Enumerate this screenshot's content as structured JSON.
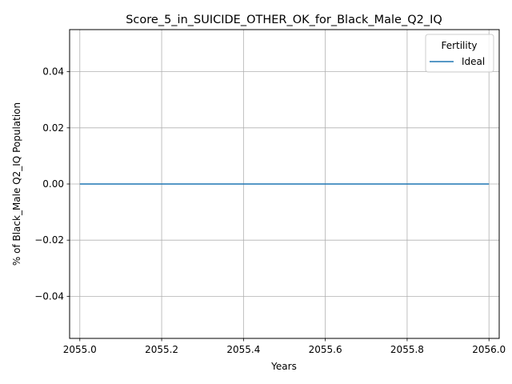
{
  "chart_data": {
    "type": "line",
    "title": "Score_5_in_SUICIDE_OTHER_OK_for_Black_Male_Q2_IQ",
    "xlabel": "Years",
    "ylabel": "% of Black_Male Q2_IQ Population",
    "xlim": [
      2054.975,
      2056.025
    ],
    "ylim": [
      -0.055,
      0.055
    ],
    "x_ticks": [
      2055.0,
      2055.2,
      2055.4,
      2055.6,
      2055.8,
      2056.0
    ],
    "x_tick_labels": [
      "2055.0",
      "2055.2",
      "2055.4",
      "2055.6",
      "2055.8",
      "2056.0"
    ],
    "y_ticks": [
      -0.04,
      -0.02,
      0.0,
      0.02,
      0.04
    ],
    "y_tick_labels": [
      "−0.04",
      "−0.02",
      "0.00",
      "0.02",
      "0.04"
    ],
    "grid": true,
    "legend": {
      "title": "Fertility",
      "placement": "top-right"
    },
    "series": [
      {
        "name": "Ideal",
        "color": "#1f77b4",
        "x": [
          2055,
          2056
        ],
        "values": [
          0,
          0
        ]
      }
    ]
  }
}
